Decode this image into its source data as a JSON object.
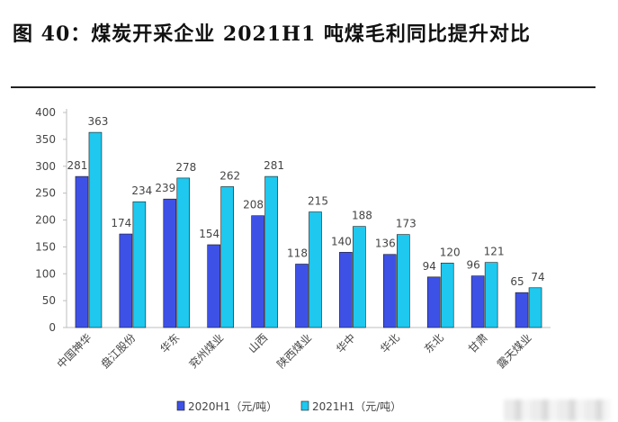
{
  "title": "图 40：煤炭开采企业 2021H1 吨煤毛利同比提升对比",
  "colors": {
    "series1": "#3e51e6",
    "series2": "#1fc8ee",
    "axis": "#bdbdbd",
    "text": "#444444"
  },
  "chart_data": {
    "type": "bar",
    "title": "",
    "xlabel": "",
    "ylabel": "",
    "ylim": [
      0,
      400
    ],
    "yticks": [
      0,
      50,
      100,
      150,
      200,
      250,
      300,
      350,
      400
    ],
    "grid": false,
    "legend": "bottom",
    "categories": [
      "中国神华",
      "盘江股份",
      "华东",
      "兖州煤业",
      "山西",
      "陕西煤业",
      "华中",
      "华北",
      "东北",
      "甘肃",
      "露天煤业"
    ],
    "series": [
      {
        "name": "2020H1（元/吨）",
        "color": "#3e51e6",
        "values": [
          281,
          174,
          239,
          154,
          208,
          118,
          140,
          136,
          94,
          96,
          65
        ]
      },
      {
        "name": "2021H1（元/吨）",
        "color": "#1fc8ee",
        "values": [
          363,
          234,
          278,
          262,
          281,
          215,
          188,
          173,
          120,
          121,
          74
        ]
      }
    ]
  }
}
